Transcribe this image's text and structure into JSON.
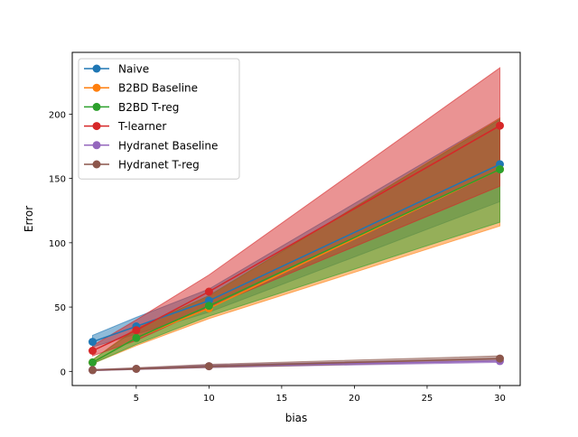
{
  "chart_data": {
    "type": "line",
    "xlabel": "bias",
    "ylabel": "Error",
    "x": [
      2,
      5,
      10,
      30
    ],
    "xlim": [
      0.6,
      31.4
    ],
    "ylim": [
      -11,
      248
    ],
    "xticks": [
      5,
      10,
      15,
      20,
      25,
      30
    ],
    "yticks": [
      0,
      50,
      100,
      150,
      200
    ],
    "legend_position": "top-left",
    "series": [
      {
        "name": "Naive",
        "color": "#1f77b4",
        "values": [
          23,
          35,
          55,
          161
        ],
        "lower": [
          19,
          29,
          46,
          132
        ],
        "upper": [
          28,
          42,
          64,
          197
        ]
      },
      {
        "name": "B2BD Baseline",
        "color": "#ff7f0e",
        "values": [
          7,
          26,
          49,
          157
        ],
        "lower": [
          6,
          20,
          41,
          113
        ],
        "upper": [
          9,
          34,
          58,
          197
        ]
      },
      {
        "name": "B2BD T-reg",
        "color": "#2ca02c",
        "values": [
          7,
          26,
          51,
          157
        ],
        "lower": [
          6,
          21,
          43,
          116
        ],
        "upper": [
          9,
          33,
          59,
          196
        ]
      },
      {
        "name": "T-learner",
        "color": "#d62728",
        "values": [
          16,
          32,
          62,
          191
        ],
        "lower": [
          12,
          24,
          50,
          144
        ],
        "upper": [
          20,
          40,
          75,
          236
        ]
      },
      {
        "name": "Hydranet Baseline",
        "color": "#9467bd",
        "values": [
          1,
          2,
          4,
          8
        ],
        "lower": [
          0.5,
          1.5,
          3,
          7
        ],
        "upper": [
          1.5,
          2.5,
          5,
          10
        ]
      },
      {
        "name": "Hydranet T-reg",
        "color": "#8c564b",
        "values": [
          1,
          2,
          4,
          10
        ],
        "lower": [
          0.5,
          1.5,
          3,
          8
        ],
        "upper": [
          1.5,
          2.8,
          5.5,
          12
        ]
      }
    ]
  }
}
